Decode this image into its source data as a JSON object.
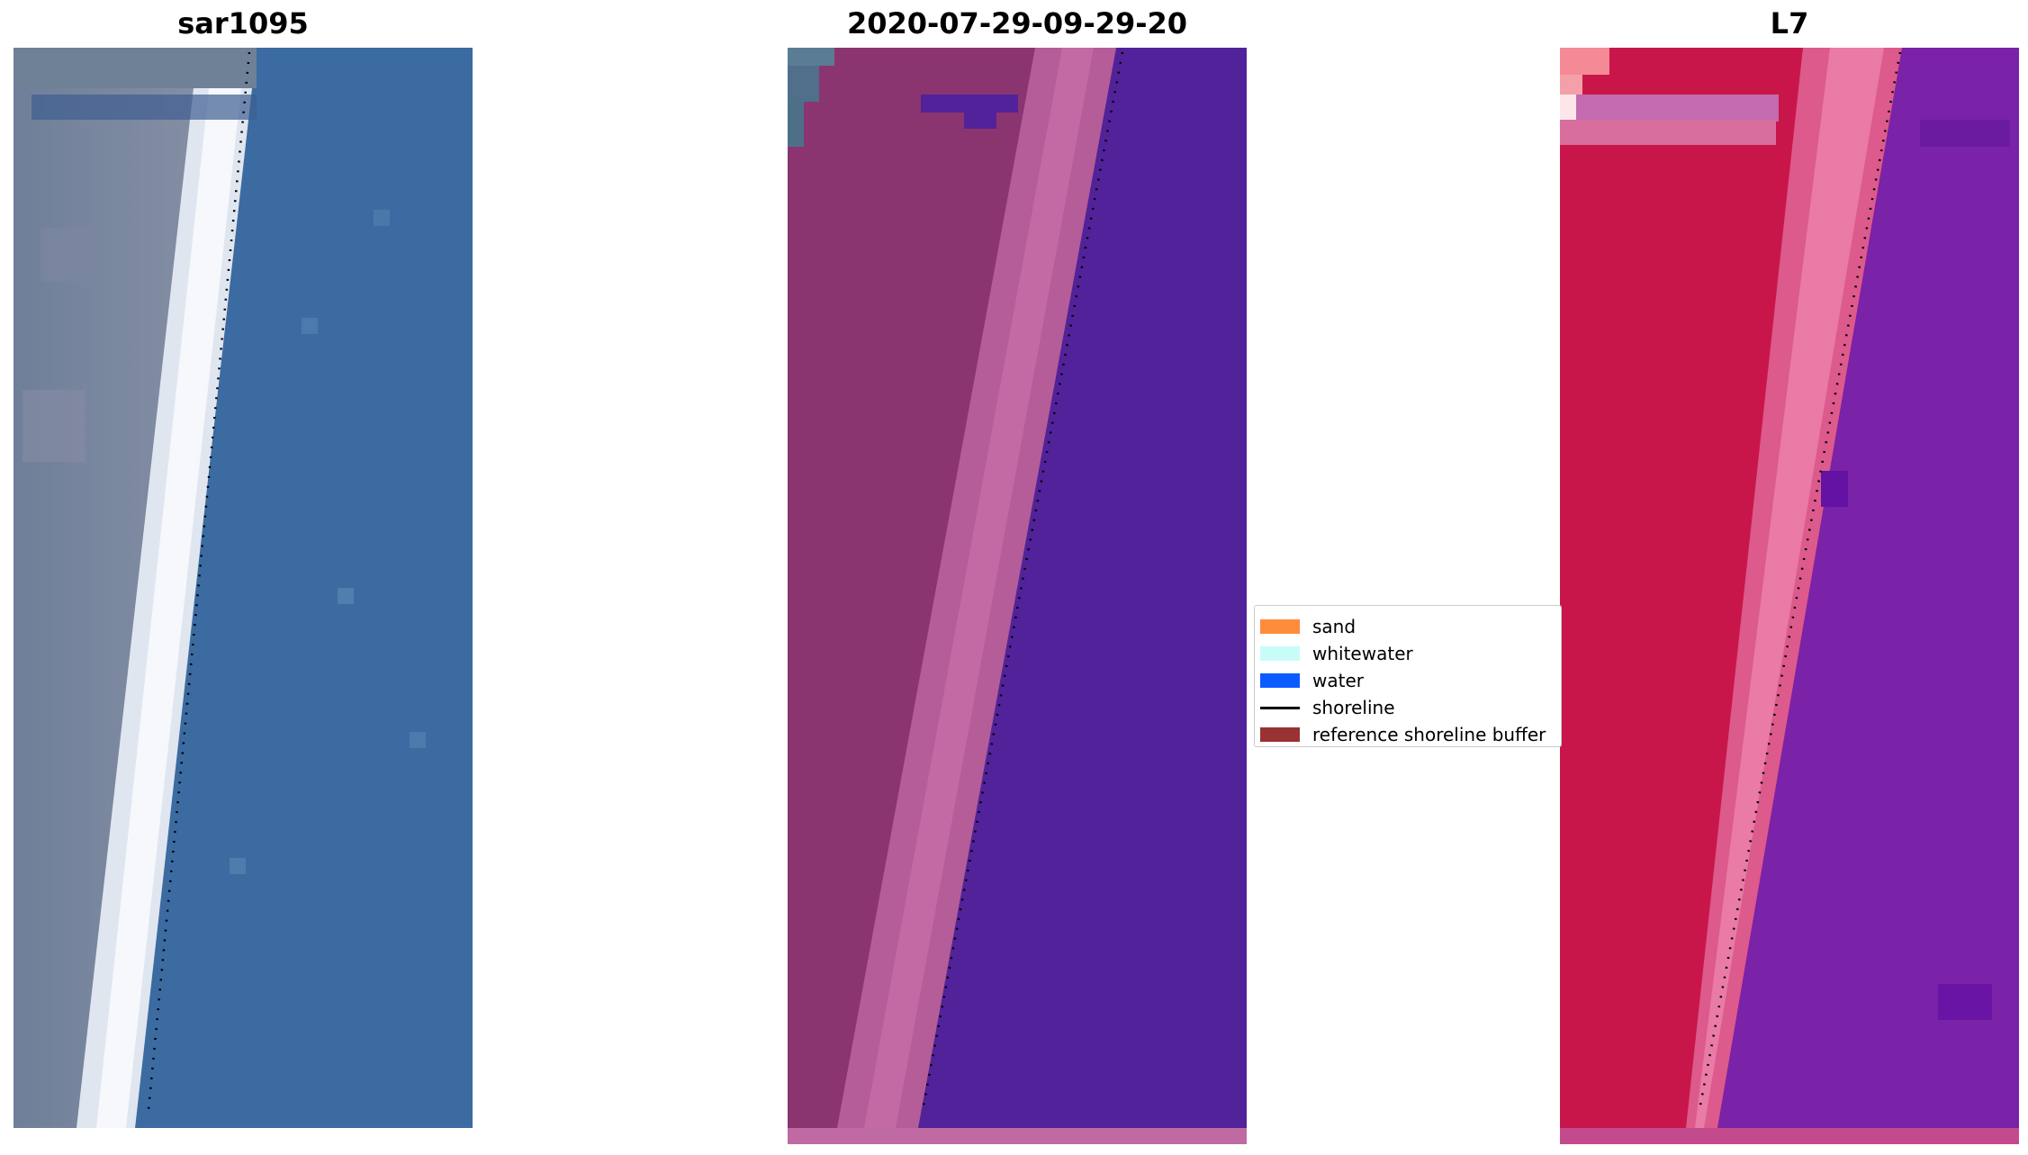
{
  "panels": [
    {
      "title": "sar1095"
    },
    {
      "title": "2020-07-29-09-29-20"
    },
    {
      "title": "L7"
    }
  ],
  "legend": {
    "items": [
      {
        "label": "sand",
        "color": "#ff8c3a",
        "kind": "patch"
      },
      {
        "label": "whitewater",
        "color": "#c8fcf8",
        "kind": "patch"
      },
      {
        "label": "water",
        "color": "#0b5cff",
        "kind": "patch"
      },
      {
        "label": "shoreline",
        "color": "#000000",
        "kind": "line"
      },
      {
        "label": "reference shoreline buffer",
        "color": "#993333",
        "kind": "patch"
      }
    ]
  },
  "colors": {
    "rgb_land": "#6c7c95",
    "rgb_sea": "#3a6aa0",
    "rgb_beach": "#e9eef4",
    "class_land": "#8b3570",
    "class_beach": "#c067a2",
    "class_water": "#52229a",
    "mndwi_land": "#c8143e",
    "mndwi_sea": "#7a1ea6",
    "mndwi_beach": "#e07aa0"
  }
}
